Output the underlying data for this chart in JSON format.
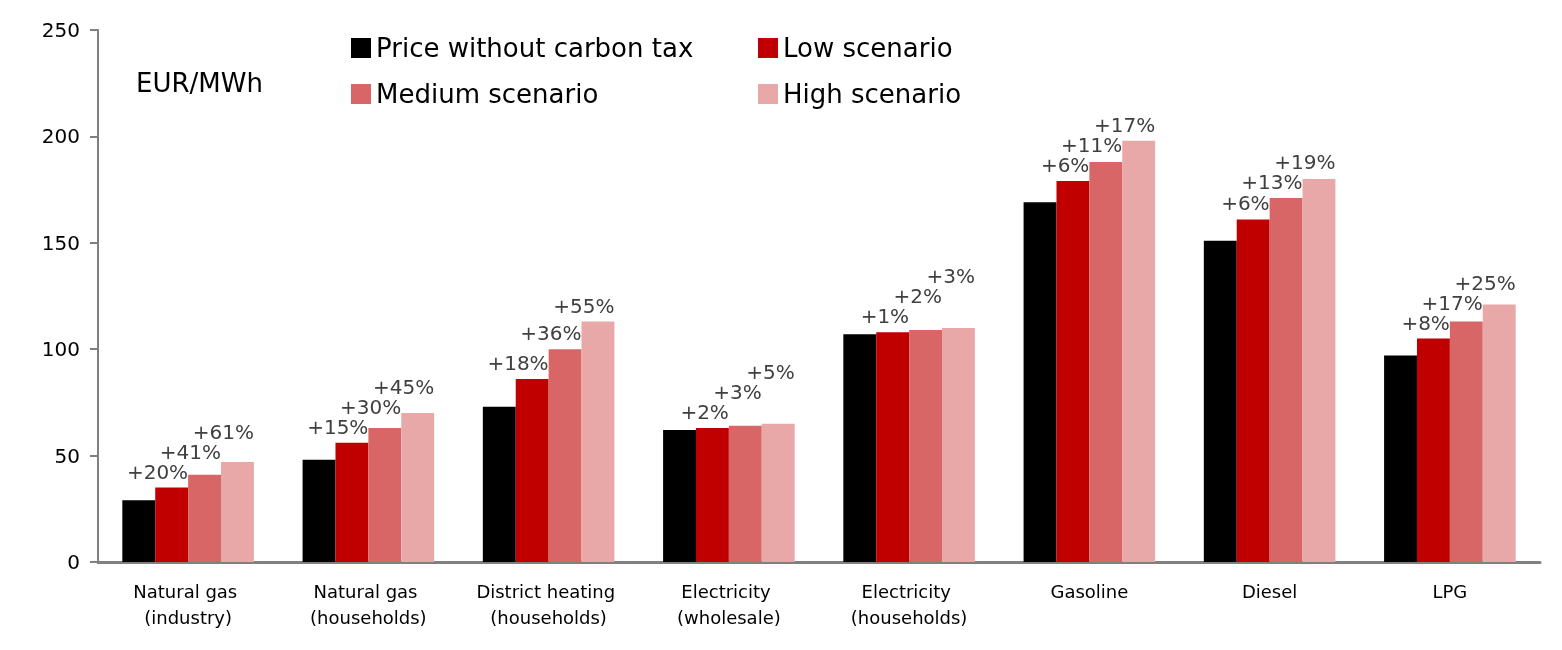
{
  "chart_data": {
    "type": "bar",
    "ylabel": "EUR/MWh",
    "categories": [
      "Natural gas (industry)",
      "Natural gas (households)",
      "District heating (households)",
      "Electricity (wholesale)",
      "Electricity (households)",
      "Gasoline",
      "Diesel",
      "LPG"
    ],
    "series": [
      {
        "name": "Price without carbon tax",
        "color": "#000000",
        "values": [
          29,
          48,
          73,
          62,
          107,
          169,
          151,
          97
        ]
      },
      {
        "name": "Low scenario",
        "color": "#c00000",
        "values": [
          35,
          56,
          86,
          63,
          108,
          179,
          161,
          105
        ]
      },
      {
        "name": "Medium scenario",
        "color": "#d96666",
        "values": [
          41,
          63,
          100,
          64,
          109,
          188,
          171,
          113
        ]
      },
      {
        "name": "High scenario",
        "color": "#e8a8a8",
        "values": [
          47,
          70,
          113,
          65,
          110,
          198,
          180,
          121
        ]
      }
    ],
    "annotations": [
      "+20%",
      "+41%",
      "+61%",
      "+15%",
      "+30%",
      "+45%",
      "+18%",
      "+36%",
      "+55%",
      "+2%",
      "+3%",
      "+5%",
      "+1%",
      "+2%",
      "+3%",
      "+6%",
      "+11%",
      "+17%",
      "+6%",
      "+13%",
      "+19%",
      "+8%",
      "+17%",
      "+25%"
    ],
    "ylim": [
      0,
      250
    ],
    "yticks": [
      0,
      50,
      100,
      150,
      200,
      250
    ],
    "grid": false,
    "legend": "top"
  }
}
